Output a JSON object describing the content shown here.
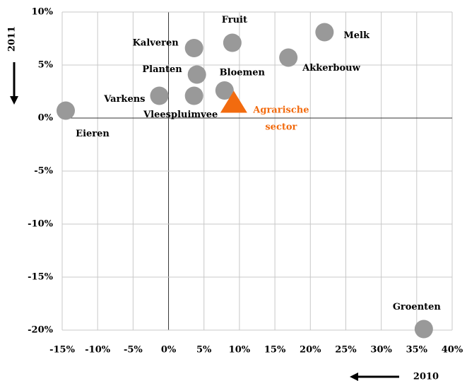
{
  "chart_data": {
    "type": "scatter",
    "xlabel": "2010",
    "ylabel": "2011",
    "xlim": [
      -15,
      40
    ],
    "ylim": [
      -20,
      10
    ],
    "xticks": [
      {
        "value": -15,
        "label": "-15%"
      },
      {
        "value": -10,
        "label": "-10%"
      },
      {
        "value": -5,
        "label": "-5%"
      },
      {
        "value": 0,
        "label": "0%"
      },
      {
        "value": 5,
        "label": "5%"
      },
      {
        "value": 10,
        "label": "10%"
      },
      {
        "value": 15,
        "label": "15%"
      },
      {
        "value": 20,
        "label": "20%"
      },
      {
        "value": 25,
        "label": "25%"
      },
      {
        "value": 30,
        "label": "30%"
      },
      {
        "value": 35,
        "label": "35%"
      },
      {
        "value": 40,
        "label": "40%"
      }
    ],
    "yticks": [
      {
        "value": -20,
        "label": "-20%"
      },
      {
        "value": -15,
        "label": "-15%"
      },
      {
        "value": -10,
        "label": "-10%"
      },
      {
        "value": -5,
        "label": "-5%"
      },
      {
        "value": 0,
        "label": "0%"
      },
      {
        "value": 5,
        "label": "5%"
      },
      {
        "value": 10,
        "label": "10%"
      }
    ],
    "grid": true,
    "point_color": "#999999",
    "points": [
      {
        "label": "Eieren",
        "x": -14.5,
        "y": 0.7
      },
      {
        "label": "Varkens",
        "x": -1.3,
        "y": 2.1
      },
      {
        "label": "Vleespluimvee",
        "x": 3.6,
        "y": 2.1
      },
      {
        "label": "Planten",
        "x": 4,
        "y": 4.1
      },
      {
        "label": "Kalveren",
        "x": 3.6,
        "y": 6.6
      },
      {
        "label": "Fruit",
        "x": 9,
        "y": 7.1
      },
      {
        "label": "Bloemen",
        "x": 7.9,
        "y": 2.6
      },
      {
        "label": "Akkerbouw",
        "x": 16.9,
        "y": 5.7
      },
      {
        "label": "Melk",
        "x": 22,
        "y": 8.1
      },
      {
        "label": "Groenten",
        "x": 36,
        "y": -19.9
      }
    ],
    "highlight": {
      "label": "Agrarische sector",
      "x": 9.2,
      "y": 1.5,
      "color": "#f26b0f"
    }
  }
}
